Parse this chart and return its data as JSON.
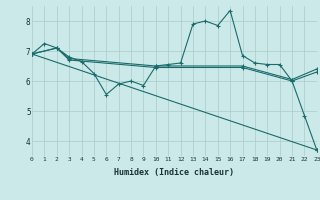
{
  "title": "",
  "xlabel": "Humidex (Indice chaleur)",
  "xlim": [
    0,
    23
  ],
  "ylim": [
    3.5,
    8.5
  ],
  "yticks": [
    4,
    5,
    6,
    7,
    8
  ],
  "xticks": [
    0,
    1,
    2,
    3,
    4,
    5,
    6,
    7,
    8,
    9,
    10,
    11,
    12,
    13,
    14,
    15,
    16,
    17,
    18,
    19,
    20,
    21,
    22,
    23
  ],
  "bg_color": "#cce9e9",
  "grid_color": "#aacccc",
  "line_color": "#1a6b6b",
  "lines": [
    [
      0,
      6.9,
      1,
      7.25,
      2,
      7.1,
      3,
      6.8,
      4,
      6.65,
      5,
      6.25,
      6,
      5.55,
      7,
      5.9,
      8,
      6.0,
      9,
      5.85,
      10,
      6.5,
      11,
      6.55,
      12,
      6.6,
      13,
      7.9,
      14,
      8.0,
      15,
      7.85,
      16,
      8.35,
      17,
      6.85,
      18,
      6.6,
      19,
      6.55,
      20,
      6.55,
      21,
      6.0,
      22,
      4.85,
      23,
      3.7
    ],
    [
      0,
      6.9,
      2,
      7.1,
      3,
      6.75,
      10,
      6.5,
      17,
      6.5,
      21,
      6.05,
      23,
      6.4
    ],
    [
      0,
      6.9,
      2,
      7.1,
      3,
      6.7,
      10,
      6.45,
      17,
      6.45,
      21,
      6.0,
      23,
      6.3
    ],
    [
      0,
      6.9,
      23,
      3.7
    ]
  ]
}
